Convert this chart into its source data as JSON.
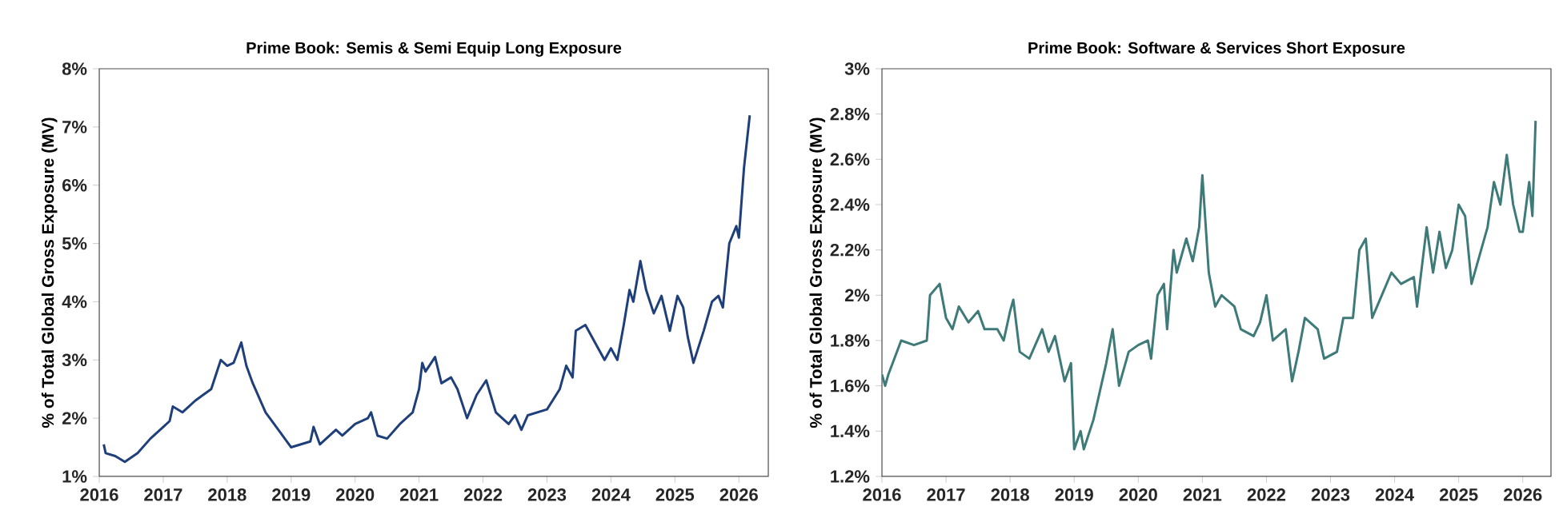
{
  "chart_data": [
    {
      "type": "line",
      "title": "Prime Book: Semis & Semi Equip Long Exposure",
      "ylabel": "% of Total Global Gross Exposure (MV)",
      "xlim": [
        2016,
        2026.46
      ],
      "xticks": [
        2016,
        2017,
        2018,
        2019,
        2020,
        2021,
        2022,
        2023,
        2024,
        2025,
        2026
      ],
      "ylim": [
        1,
        8
      ],
      "yticks": [
        {
          "value": 1,
          "label": "1%"
        },
        {
          "value": 2,
          "label": "2%"
        },
        {
          "value": 3,
          "label": "3%"
        },
        {
          "value": 4,
          "label": "4%"
        },
        {
          "value": 5,
          "label": "5%"
        },
        {
          "value": 6,
          "label": "6%"
        },
        {
          "value": 7,
          "label": "7%"
        },
        {
          "value": 8,
          "label": "8%"
        }
      ],
      "grid": false,
      "series": [
        {
          "color": "#1f3f7a",
          "x": [
            2016.07,
            2016.1,
            2016.25,
            2016.4,
            2016.6,
            2016.8,
            2017.0,
            2017.1,
            2017.15,
            2017.3,
            2017.5,
            2017.75,
            2017.9,
            2018.0,
            2018.1,
            2018.22,
            2018.3,
            2018.4,
            2018.6,
            2018.8,
            2019.0,
            2019.3,
            2019.35,
            2019.45,
            2019.7,
            2019.8,
            2020.0,
            2020.2,
            2020.25,
            2020.35,
            2020.5,
            2020.7,
            2020.9,
            2021.0,
            2021.05,
            2021.1,
            2021.25,
            2021.35,
            2021.5,
            2021.6,
            2021.75,
            2021.9,
            2022.05,
            2022.2,
            2022.4,
            2022.5,
            2022.6,
            2022.7,
            2023.0,
            2023.2,
            2023.3,
            2023.4,
            2023.45,
            2023.6,
            2023.8,
            2023.9,
            2024.0,
            2024.1,
            2024.2,
            2024.29,
            2024.35,
            2024.46,
            2024.55,
            2024.67,
            2024.79,
            2024.92,
            2025.04,
            2025.13,
            2025.2,
            2025.29,
            2025.45,
            2025.58,
            2025.68,
            2025.75,
            2025.85,
            2025.96,
            2026.0,
            2026.08,
            2026.17
          ],
          "values": [
            1.55,
            1.4,
            1.35,
            1.25,
            1.4,
            1.65,
            1.85,
            1.95,
            2.2,
            2.1,
            2.3,
            2.5,
            3.0,
            2.9,
            2.95,
            3.3,
            2.9,
            2.6,
            2.1,
            1.8,
            1.5,
            1.6,
            1.85,
            1.55,
            1.8,
            1.7,
            1.9,
            2.0,
            2.1,
            1.7,
            1.65,
            1.9,
            2.1,
            2.5,
            2.95,
            2.8,
            3.05,
            2.6,
            2.7,
            2.5,
            2.0,
            2.4,
            2.65,
            2.1,
            1.9,
            2.05,
            1.8,
            2.05,
            2.15,
            2.5,
            2.9,
            2.7,
            3.5,
            3.6,
            3.2,
            3.0,
            3.2,
            3.0,
            3.6,
            4.2,
            4.0,
            4.7,
            4.2,
            3.8,
            4.1,
            3.5,
            4.1,
            3.9,
            3.4,
            2.95,
            3.5,
            4.0,
            4.1,
            3.9,
            5.0,
            5.3,
            5.1,
            6.3,
            7.2
          ]
        }
      ]
    },
    {
      "type": "line",
      "title": "Prime Book: Software & Services Short Exposure",
      "ylabel": "% of Total Global Gross Exposure (MV)",
      "xlim": [
        2016,
        2026.44
      ],
      "xticks": [
        2016,
        2017,
        2018,
        2019,
        2020,
        2021,
        2022,
        2023,
        2024,
        2025,
        2026
      ],
      "ylim": [
        1.2,
        3
      ],
      "yticks": [
        {
          "value": 1.2,
          "label": "1.2%"
        },
        {
          "value": 1.4,
          "label": "1.4%"
        },
        {
          "value": 1.6,
          "label": "1.6%"
        },
        {
          "value": 1.8,
          "label": "1.8%"
        },
        {
          "value": 2,
          "label": "2%"
        },
        {
          "value": 2.2,
          "label": "2.2%"
        },
        {
          "value": 2.4,
          "label": "2.4%"
        },
        {
          "value": 2.6,
          "label": "2.6%"
        },
        {
          "value": 2.8,
          "label": "2.8%"
        },
        {
          "value": 3,
          "label": "3%"
        }
      ],
      "grid": false,
      "series": [
        {
          "color": "#3d7a78",
          "x": [
            2016.0,
            2016.05,
            2016.1,
            2016.3,
            2016.5,
            2016.7,
            2016.75,
            2016.9,
            2017.0,
            2017.1,
            2017.2,
            2017.35,
            2017.5,
            2017.6,
            2017.8,
            2017.9,
            2018.0,
            2018.05,
            2018.15,
            2018.3,
            2018.5,
            2018.6,
            2018.7,
            2018.85,
            2018.95,
            2019.0,
            2019.1,
            2019.15,
            2019.3,
            2019.5,
            2019.6,
            2019.7,
            2019.85,
            2020.0,
            2020.15,
            2020.2,
            2020.3,
            2020.4,
            2020.45,
            2020.55,
            2020.6,
            2020.75,
            2020.85,
            2020.95,
            2021.0,
            2021.1,
            2021.2,
            2021.3,
            2021.5,
            2021.6,
            2021.8,
            2021.9,
            2022.0,
            2022.1,
            2022.3,
            2022.4,
            2022.5,
            2022.6,
            2022.8,
            2022.9,
            2023.1,
            2023.2,
            2023.35,
            2023.45,
            2023.55,
            2023.65,
            2023.8,
            2023.95,
            2024.1,
            2024.3,
            2024.35,
            2024.5,
            2024.6,
            2024.7,
            2024.8,
            2024.9,
            2025.0,
            2025.1,
            2025.2,
            2025.35,
            2025.45,
            2025.55,
            2025.65,
            2025.75,
            2025.85,
            2025.95,
            2026.0,
            2026.1,
            2026.15,
            2026.2
          ],
          "values": [
            1.65,
            1.6,
            1.65,
            1.8,
            1.78,
            1.8,
            2.0,
            2.05,
            1.9,
            1.85,
            1.95,
            1.88,
            1.93,
            1.85,
            1.85,
            1.8,
            1.93,
            1.98,
            1.75,
            1.72,
            1.85,
            1.75,
            1.82,
            1.62,
            1.7,
            1.32,
            1.4,
            1.32,
            1.45,
            1.7,
            1.85,
            1.6,
            1.75,
            1.78,
            1.8,
            1.72,
            2.0,
            2.05,
            1.85,
            2.2,
            2.1,
            2.25,
            2.15,
            2.3,
            2.53,
            2.1,
            1.95,
            2.0,
            1.95,
            1.85,
            1.82,
            1.88,
            2.0,
            1.8,
            1.85,
            1.62,
            1.75,
            1.9,
            1.85,
            1.72,
            1.75,
            1.9,
            1.9,
            2.2,
            2.25,
            1.9,
            2.0,
            2.1,
            2.05,
            2.08,
            1.95,
            2.3,
            2.1,
            2.28,
            2.12,
            2.2,
            2.4,
            2.35,
            2.05,
            2.2,
            2.3,
            2.5,
            2.4,
            2.62,
            2.4,
            2.28,
            2.28,
            2.5,
            2.35,
            2.77
          ]
        }
      ]
    }
  ]
}
